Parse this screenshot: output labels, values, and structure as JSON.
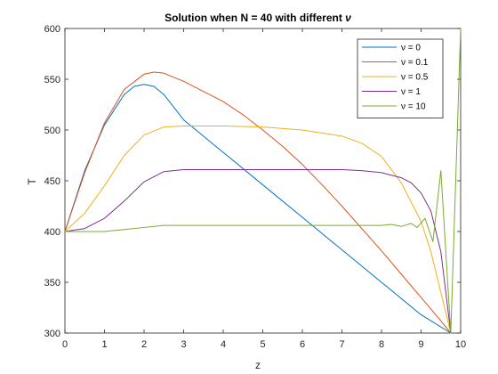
{
  "chart_data": {
    "type": "line",
    "title_prefix": "Solution when N = 40 with different ",
    "title_symbol": "ν",
    "xlabel": "z",
    "ylabel": "T",
    "xlim": [
      0,
      10
    ],
    "ylim": [
      300,
      600
    ],
    "xticks": [
      0,
      1,
      2,
      3,
      4,
      5,
      6,
      7,
      8,
      9,
      10
    ],
    "yticks": [
      300,
      350,
      400,
      450,
      500,
      550,
      600
    ],
    "grid": false,
    "legend_position": "top-right",
    "series": [
      {
        "name": "ν = 0",
        "color": "#0072BD",
        "x": [
          0,
          0.5,
          1.0,
          1.5,
          1.75,
          2.0,
          2.25,
          2.5,
          3,
          4,
          5,
          6,
          7,
          8,
          9,
          9.75
        ],
        "y": [
          400,
          460,
          505,
          535,
          543,
          545,
          543,
          535,
          510,
          478,
          446,
          414,
          382,
          350,
          318,
          300
        ]
      },
      {
        "name": "ν = 0.1",
        "color": "#D95319",
        "x": [
          0,
          0.5,
          1.0,
          1.5,
          2.0,
          2.25,
          2.5,
          3,
          3.5,
          4,
          4.5,
          5,
          5.5,
          6,
          6.5,
          7,
          7.5,
          8,
          8.5,
          9,
          9.5,
          9.75
        ],
        "y": [
          400,
          458,
          507,
          540,
          555,
          557,
          556,
          548,
          538,
          528,
          515,
          500,
          484,
          466,
          446,
          425,
          403,
          381,
          358,
          335,
          312,
          300
        ]
      },
      {
        "name": "ν = 0.5",
        "color": "#EDB120",
        "x": [
          0,
          0.5,
          1.0,
          1.5,
          2.0,
          2.5,
          3,
          4,
          5,
          6,
          7,
          7.5,
          8,
          8.5,
          9,
          9.25,
          9.5,
          9.75
        ],
        "y": [
          400,
          418,
          445,
          475,
          495,
          503,
          504,
          504,
          503,
          500,
          494,
          487,
          474,
          448,
          410,
          380,
          340,
          300
        ]
      },
      {
        "name": "ν = 1",
        "color": "#7E2F8E",
        "x": [
          0,
          0.5,
          1.0,
          1.5,
          2.0,
          2.5,
          3,
          4,
          5,
          6,
          7,
          7.5,
          8,
          8.5,
          8.75,
          9,
          9.25,
          9.5,
          9.75
        ],
        "y": [
          400,
          403,
          413,
          430,
          449,
          459,
          461,
          461,
          461,
          461,
          461,
          460,
          458,
          453,
          448,
          438,
          420,
          380,
          300
        ]
      },
      {
        "name": "ν = 10",
        "color": "#77AC30",
        "x": [
          0,
          1.0,
          1.5,
          2.0,
          2.5,
          3,
          4,
          5,
          6,
          7,
          8,
          8.25,
          8.5,
          8.75,
          8.9,
          9.1,
          9.3,
          9.5,
          9.75,
          10
        ],
        "y": [
          400,
          400,
          402,
          404,
          406,
          406,
          406,
          406,
          406,
          406,
          406,
          407,
          405,
          408,
          404,
          413,
          390,
          460,
          300,
          600
        ]
      }
    ]
  }
}
